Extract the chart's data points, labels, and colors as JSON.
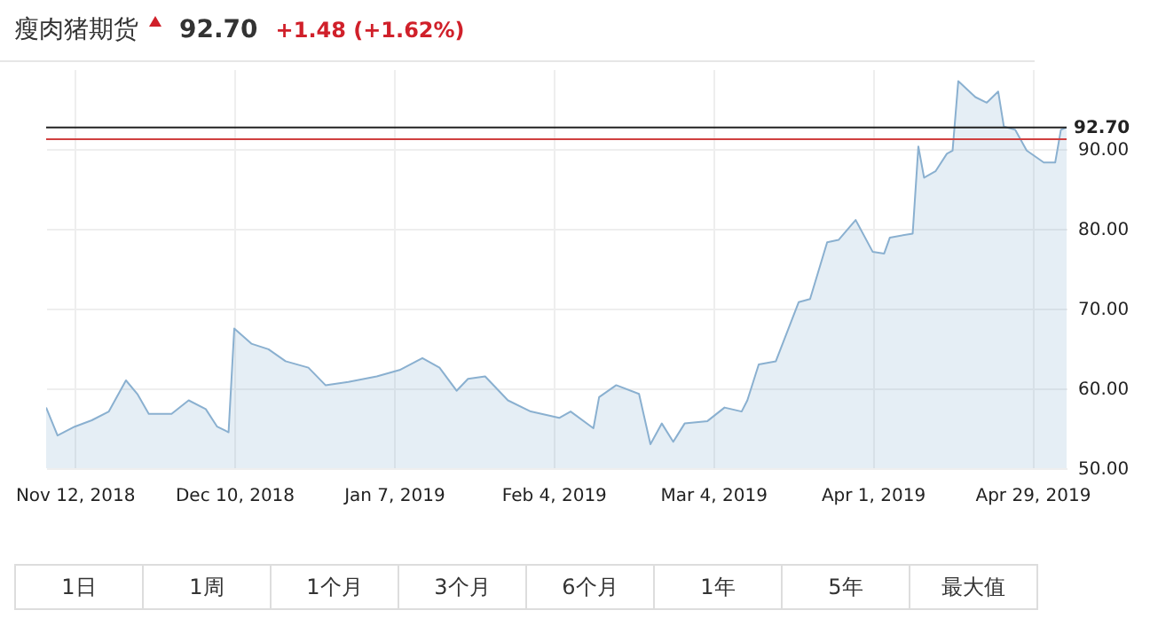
{
  "chart_data": {
    "type": "area",
    "title": "瘦肉猪期货",
    "annotations": [
      "92.70",
      "+1.48 (+1.62%)",
      "1日",
      "1周",
      "1个月",
      "3个月",
      "6个月",
      "1年",
      "5年",
      "最大值"
    ],
    "x": [
      "2018-11-07",
      "2018-11-09",
      "2018-11-12",
      "2018-11-15",
      "2018-11-18",
      "2018-11-21",
      "2018-11-23",
      "2018-11-25",
      "2018-11-29",
      "2018-12-02",
      "2018-12-05",
      "2018-12-07",
      "2018-12-09",
      "2018-12-10",
      "2018-12-13",
      "2018-12-16",
      "2018-12-19",
      "2018-12-23",
      "2018-12-26",
      "2018-12-30",
      "2019-01-04",
      "2019-01-08",
      "2019-01-12",
      "2019-01-15",
      "2019-01-18",
      "2019-01-20",
      "2019-01-23",
      "2019-01-27",
      "2019-01-31",
      "2019-02-05",
      "2019-02-07",
      "2019-02-11",
      "2019-02-12",
      "2019-02-15",
      "2019-02-19",
      "2019-02-21",
      "2019-02-23",
      "2019-02-25",
      "2019-02-27",
      "2019-03-03",
      "2019-03-06",
      "2019-03-09",
      "2019-03-10",
      "2019-03-12",
      "2019-03-15",
      "2019-03-19",
      "2019-03-21",
      "2019-03-24",
      "2019-03-26",
      "2019-03-29",
      "2019-04-01",
      "2019-04-03",
      "2019-04-04",
      "2019-04-08",
      "2019-04-09",
      "2019-04-10",
      "2019-04-12",
      "2019-04-14",
      "2019-04-15",
      "2019-04-16",
      "2019-04-19",
      "2019-04-21",
      "2019-04-23",
      "2019-04-24",
      "2019-04-26",
      "2019-04-28",
      "2019-05-01",
      "2019-05-03",
      "2019-05-04",
      "2019-05-05"
    ],
    "series": [
      {
        "color": "#8ab0d0",
        "values": [
          57.6,
          54.1,
          55.2,
          56.0,
          57.1,
          61.0,
          59.3,
          56.8,
          56.8,
          58.5,
          57.4,
          55.2,
          54.5,
          67.5,
          65.6,
          64.9,
          63.4,
          62.6,
          60.4,
          60.8,
          61.5,
          62.3,
          63.8,
          62.6,
          59.7,
          61.2,
          61.5,
          58.5,
          57.1,
          56.3,
          57.1,
          55.0,
          58.9,
          60.4,
          59.3,
          53.0,
          55.6,
          53.3,
          55.6,
          55.9,
          57.6,
          57.1,
          58.5,
          63.0,
          63.4,
          70.8,
          71.2,
          78.3,
          78.6,
          81.1,
          77.1,
          76.9,
          78.9,
          79.4,
          90.3,
          86.4,
          87.2,
          89.4,
          89.8,
          98.5,
          96.5,
          95.8,
          97.2,
          92.8,
          92.4,
          89.8,
          88.3,
          88.3,
          92.4,
          92.7
        ]
      }
    ],
    "xlim": [
      "2018-11-07",
      "2019-05-05"
    ],
    "xticks": [
      {
        "value": "2018-11-12",
        "label": "Nov 12, 2018"
      },
      {
        "value": "2018-12-10",
        "label": "Dec 10, 2018"
      },
      {
        "value": "2019-01-07",
        "label": "Jan 7, 2019"
      },
      {
        "value": "2019-02-04",
        "label": "Feb 4, 2019"
      },
      {
        "value": "2019-03-04",
        "label": "Mar 4, 2019"
      },
      {
        "value": "2019-04-01",
        "label": "Apr 1, 2019"
      },
      {
        "value": "2019-04-29",
        "label": "Apr 29, 2019"
      }
    ],
    "ylim": [
      50,
      100
    ],
    "yticks": [
      {
        "value": 50,
        "label": "50.00"
      },
      {
        "value": 60,
        "label": "60.00"
      },
      {
        "value": 70,
        "label": "70.00"
      },
      {
        "value": 80,
        "label": "80.00"
      },
      {
        "value": 90,
        "label": "90.00"
      }
    ],
    "ref_lines": [
      {
        "axis": "y",
        "value": 92.7,
        "label": "92.70",
        "color": "#222222"
      },
      {
        "axis": "y",
        "value": 91.22,
        "color": "#d04040"
      }
    ],
    "grid": true
  }
}
